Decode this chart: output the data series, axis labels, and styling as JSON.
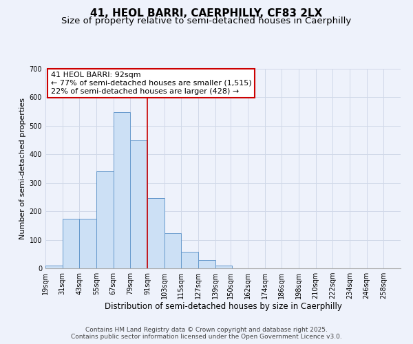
{
  "title": "41, HEOL BARRI, CAERPHILLY, CF83 2LX",
  "subtitle": "Size of property relative to semi-detached houses in Caerphilly",
  "xlabel": "Distribution of semi-detached houses by size in Caerphilly",
  "ylabel": "Number of semi-detached properties",
  "bar_left_edges": [
    19,
    31,
    43,
    55,
    67,
    79,
    91,
    103,
    115,
    127,
    139,
    150,
    162,
    174,
    186,
    198,
    210,
    222,
    234,
    246
  ],
  "bar_heights": [
    10,
    175,
    175,
    340,
    548,
    450,
    247,
    123,
    58,
    28,
    10,
    0,
    0,
    0,
    0,
    0,
    0,
    0,
    0,
    0
  ],
  "bin_width": 12,
  "xtick_labels": [
    "19sqm",
    "31sqm",
    "43sqm",
    "55sqm",
    "67sqm",
    "79sqm",
    "91sqm",
    "103sqm",
    "115sqm",
    "127sqm",
    "139sqm",
    "150sqm",
    "162sqm",
    "174sqm",
    "186sqm",
    "198sqm",
    "210sqm",
    "222sqm",
    "234sqm",
    "246sqm",
    "258sqm"
  ],
  "xtick_positions": [
    19,
    31,
    43,
    55,
    67,
    79,
    91,
    103,
    115,
    127,
    139,
    150,
    162,
    174,
    186,
    198,
    210,
    222,
    234,
    246,
    258
  ],
  "ylim": [
    0,
    700
  ],
  "yticks": [
    0,
    100,
    200,
    300,
    400,
    500,
    600,
    700
  ],
  "vline_x": 91,
  "bar_color": "#cce0f5",
  "bar_edge_color": "#6699cc",
  "vline_color": "#cc0000",
  "grid_color": "#d0d8e8",
  "bg_color": "#eef2fb",
  "annotation_text": "41 HEOL BARRI: 92sqm\n← 77% of semi-detached houses are smaller (1,515)\n22% of semi-detached houses are larger (428) →",
  "annotation_box_edgecolor": "#cc0000",
  "footer1": "Contains HM Land Registry data © Crown copyright and database right 2025.",
  "footer2": "Contains public sector information licensed under the Open Government Licence v3.0.",
  "title_fontsize": 11,
  "subtitle_fontsize": 9.5,
  "xlabel_fontsize": 8.5,
  "ylabel_fontsize": 8,
  "tick_fontsize": 7,
  "annotation_fontsize": 8,
  "footer_fontsize": 6.5
}
